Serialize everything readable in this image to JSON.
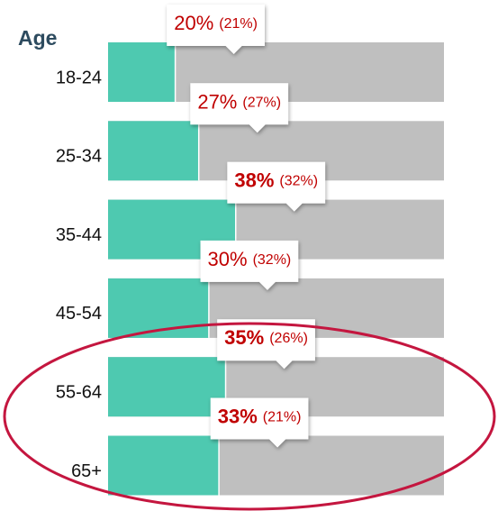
{
  "chart_data": {
    "type": "bar",
    "orientation": "horizontal",
    "title": "Age",
    "categories": [
      "18-24",
      "25-34",
      "35-44",
      "45-54",
      "55-64",
      "65+"
    ],
    "values": [
      20,
      27,
      38,
      30,
      35,
      33
    ],
    "value_labels": [
      "20%",
      "27%",
      "38%",
      "30%",
      "35%",
      "33%"
    ],
    "comparison_labels": [
      "(21%)",
      "(27%)",
      "(32%)",
      "(32%)",
      "(26%)",
      "(21%)"
    ],
    "bold": [
      false,
      false,
      true,
      false,
      true,
      true
    ],
    "color": "#4ec9b0",
    "track_color": "#bfbfbf",
    "label_color": "#c00000",
    "xlim": [
      0,
      100
    ]
  }
}
